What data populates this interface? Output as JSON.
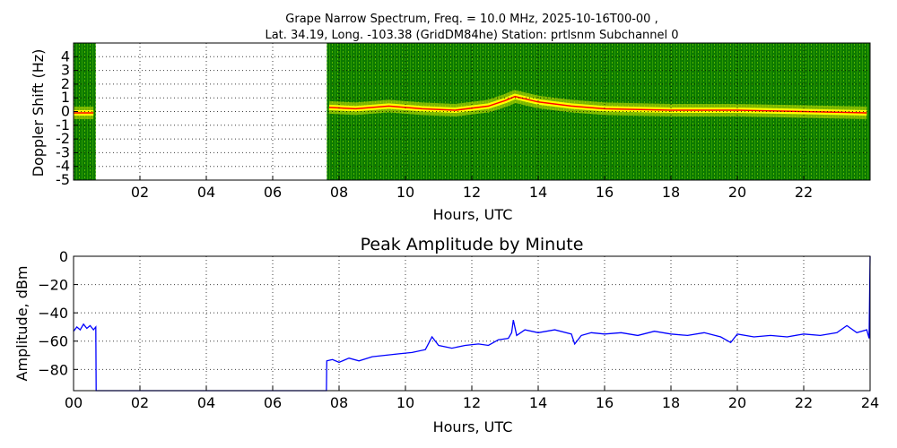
{
  "chart_data": [
    {
      "type": "heatmap",
      "title_line1": "Grape Narrow Spectrum, Freq. = 10.0 MHz, 2025-10-16T00-00 ,",
      "title_line2": "Lat.  34.19, Long. -103.38 (GridDM84he) Station: prtlsnm Subchannel 0",
      "xlabel": "Hours, UTC",
      "ylabel": "Doppler Shift (Hz)",
      "xlim": [
        0,
        24
      ],
      "ylim": [
        -5,
        5
      ],
      "xticks": [
        2,
        4,
        6,
        8,
        10,
        12,
        14,
        16,
        18,
        20,
        22
      ],
      "xtick_labels": [
        "02",
        "04",
        "06",
        "08",
        "10",
        "12",
        "14",
        "16",
        "18",
        "20",
        "22"
      ],
      "yticks": [
        -5,
        -4,
        -3,
        -2,
        -1,
        0,
        1,
        2,
        3,
        4
      ],
      "ytick_labels": [
        "-5",
        "-4",
        "-3",
        "-2",
        "-1",
        "0",
        "1",
        "2",
        "3",
        "4"
      ],
      "grid": true,
      "colormap": [
        "#006400",
        "#1a8c00",
        "#d7e600",
        "#ffff00",
        "#ff0000"
      ],
      "data_gaps": [
        [
          0.67,
          7.63
        ]
      ],
      "doppler_trace": [
        {
          "x": 0.0,
          "y": -0.1
        },
        {
          "x": 0.6,
          "y": -0.1
        },
        {
          "x": 7.7,
          "y": 0.3
        },
        {
          "x": 8.5,
          "y": 0.2
        },
        {
          "x": 9.5,
          "y": 0.4
        },
        {
          "x": 10.5,
          "y": 0.2
        },
        {
          "x": 11.5,
          "y": 0.1
        },
        {
          "x": 12.5,
          "y": 0.4
        },
        {
          "x": 13.0,
          "y": 0.8
        },
        {
          "x": 13.3,
          "y": 1.1
        },
        {
          "x": 14.0,
          "y": 0.7
        },
        {
          "x": 15.0,
          "y": 0.4
        },
        {
          "x": 16.0,
          "y": 0.2
        },
        {
          "x": 18.0,
          "y": 0.1
        },
        {
          "x": 20.0,
          "y": 0.1
        },
        {
          "x": 22.0,
          "y": 0.0
        },
        {
          "x": 23.9,
          "y": -0.1
        }
      ]
    },
    {
      "type": "line",
      "title": "Peak Amplitude by Minute",
      "xlabel": "Hours, UTC",
      "ylabel": "Amplitude, dBm",
      "xlim": [
        0,
        24
      ],
      "ylim": [
        -95,
        0
      ],
      "xticks": [
        0,
        2,
        4,
        6,
        8,
        10,
        12,
        14,
        16,
        18,
        20,
        22,
        24
      ],
      "xtick_labels": [
        "00",
        "02",
        "04",
        "06",
        "08",
        "10",
        "12",
        "14",
        "16",
        "18",
        "20",
        "22",
        "24"
      ],
      "yticks": [
        0,
        -20,
        -40,
        -60,
        -80
      ],
      "ytick_labels": [
        "0",
        "−20",
        "−40",
        "−60",
        "−80"
      ],
      "grid": true,
      "line_color": "#0000ff",
      "series": [
        {
          "x": [
            0.0,
            0.1,
            0.2,
            0.3,
            0.4,
            0.5,
            0.6,
            0.67,
            0.68,
            7.62,
            7.63,
            7.8,
            8.0,
            8.3,
            8.6,
            9.0,
            9.4,
            9.8,
            10.2,
            10.6,
            10.8,
            11.0,
            11.4,
            11.8,
            12.2,
            12.5,
            12.8,
            13.1,
            13.2,
            13.25,
            13.35,
            13.6,
            14.0,
            14.5,
            15.0,
            15.1,
            15.3,
            15.6,
            16.0,
            16.5,
            17.0,
            17.5,
            18.0,
            18.5,
            19.0,
            19.5,
            19.8,
            20.0,
            20.5,
            21.0,
            21.5,
            22.0,
            22.5,
            23.0,
            23.3,
            23.6,
            23.9,
            23.97,
            24.0
          ],
          "y": [
            -53,
            -50,
            -52,
            -48,
            -51,
            -49,
            -52,
            -50,
            -95,
            -95,
            -74,
            -73,
            -75,
            -72,
            -74,
            -71,
            -70,
            -69,
            -68,
            -66,
            -57,
            -63,
            -65,
            -63,
            -62,
            -63,
            -59,
            -58,
            -54,
            -45,
            -56,
            -52,
            -54,
            -52,
            -55,
            -62,
            -56,
            -54,
            -55,
            -54,
            -56,
            -53,
            -55,
            -56,
            -54,
            -57,
            -61,
            -55,
            -57,
            -56,
            -57,
            -55,
            -56,
            -54,
            -49,
            -54,
            -52,
            -58,
            0
          ]
        }
      ]
    }
  ]
}
